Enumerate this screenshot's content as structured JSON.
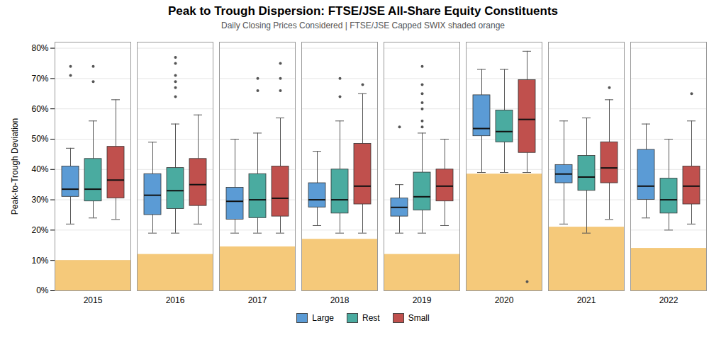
{
  "chart_data": {
    "type": "boxplot",
    "title": "Peak to Trough Dispersion: FTSE/JSE All-Share Equity Constituents",
    "subtitle": "Daily Closing Prices Considered | FTSE/JSE Capped SWIX shaded orange",
    "ylabel": "Peak-to-Trough Deviation",
    "categories": [
      "2015",
      "2016",
      "2017",
      "2018",
      "2019",
      "2020",
      "2021",
      "2022"
    ],
    "ylim": [
      0,
      0.82
    ],
    "yticks": [
      {
        "value": 0,
        "label": "0%"
      },
      {
        "value": 0.1,
        "label": "10%"
      },
      {
        "value": 0.2,
        "label": "20%"
      },
      {
        "value": 0.3,
        "label": "30%"
      },
      {
        "value": 0.4,
        "label": "40%"
      },
      {
        "value": 0.5,
        "label": "50%"
      },
      {
        "value": 0.6,
        "label": "60%"
      },
      {
        "value": 0.7,
        "label": "70%"
      },
      {
        "value": 0.8,
        "label": "80%"
      }
    ],
    "grid": true,
    "legend": "bottom",
    "background_bars": {
      "color": "#F5C97A",
      "values": [
        0.1,
        0.12,
        0.145,
        0.17,
        0.12,
        0.385,
        0.21,
        0.14
      ]
    },
    "series": [
      {
        "name": "Large",
        "color": "#5B9BD5",
        "whislo": [
          0.22,
          0.19,
          0.19,
          0.215,
          0.19,
          0.39,
          0.22,
          0.24
        ],
        "q1": [
          0.31,
          0.25,
          0.235,
          0.275,
          0.245,
          0.51,
          0.355,
          0.3
        ],
        "med": [
          0.335,
          0.315,
          0.295,
          0.3,
          0.275,
          0.535,
          0.385,
          0.345
        ],
        "q3": [
          0.41,
          0.385,
          0.34,
          0.355,
          0.305,
          0.645,
          0.415,
          0.465
        ],
        "whishi": [
          0.47,
          0.49,
          0.5,
          0.46,
          0.35,
          0.73,
          0.56,
          0.55
        ],
        "fliers": [
          [
            0.71,
            0.74
          ],
          [],
          [],
          [],
          [
            0.54
          ],
          [],
          [],
          []
        ]
      },
      {
        "name": "Rest",
        "color": "#4AABA0",
        "whislo": [
          0.24,
          0.19,
          0.19,
          0.19,
          0.19,
          0.39,
          0.19,
          0.2
        ],
        "q1": [
          0.295,
          0.27,
          0.24,
          0.255,
          0.265,
          0.49,
          0.33,
          0.255
        ],
        "med": [
          0.335,
          0.33,
          0.3,
          0.3,
          0.31,
          0.525,
          0.375,
          0.3
        ],
        "q3": [
          0.435,
          0.405,
          0.385,
          0.4,
          0.39,
          0.595,
          0.445,
          0.37
        ],
        "whishi": [
          0.56,
          0.55,
          0.52,
          0.56,
          0.52,
          0.73,
          0.57,
          0.5
        ],
        "fliers": [
          [
            0.69,
            0.74
          ],
          [
            0.64,
            0.67,
            0.69,
            0.71,
            0.75,
            0.77
          ],
          [
            0.66,
            0.7
          ],
          [
            0.64,
            0.7
          ],
          [
            0.54,
            0.56,
            0.6,
            0.62,
            0.65,
            0.68,
            0.74
          ],
          [],
          [],
          []
        ]
      },
      {
        "name": "Small",
        "color": "#C0504D",
        "whislo": [
          0.235,
          0.22,
          0.19,
          0.19,
          0.215,
          0.39,
          0.235,
          0.22
        ],
        "q1": [
          0.305,
          0.28,
          0.245,
          0.285,
          0.295,
          0.455,
          0.355,
          0.285
        ],
        "med": [
          0.365,
          0.35,
          0.305,
          0.345,
          0.345,
          0.565,
          0.405,
          0.345
        ],
        "q3": [
          0.475,
          0.435,
          0.41,
          0.485,
          0.4,
          0.695,
          0.49,
          0.41
        ],
        "whishi": [
          0.63,
          0.58,
          0.57,
          0.65,
          0.5,
          0.79,
          0.63,
          0.56
        ],
        "fliers": [
          [],
          [],
          [
            0.66,
            0.7,
            0.75
          ],
          [
            0.68
          ],
          [],
          [
            0.03
          ],
          [
            0.67
          ],
          [
            0.65
          ]
        ]
      }
    ]
  }
}
